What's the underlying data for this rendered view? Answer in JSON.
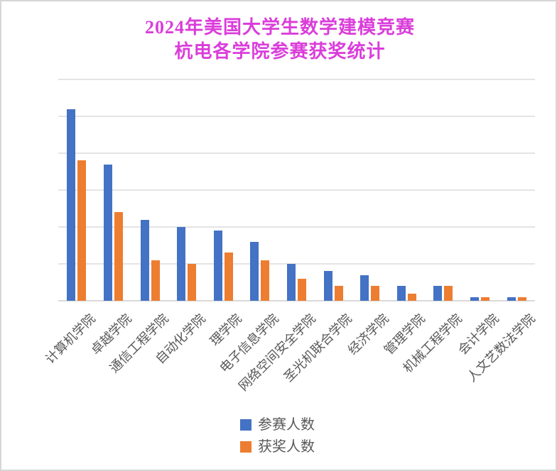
{
  "title": {
    "line1": "2024年美国大学生数学建模竞赛",
    "line2": "杭电各学院参赛获奖统计",
    "color": "#DA3DDA"
  },
  "legend": {
    "position": "bottom",
    "items": [
      {
        "label": "参赛人数",
        "color": "#4472C4",
        "swatch_icon": "square-icon"
      },
      {
        "label": "获奖人数",
        "color": "#ED7D31",
        "swatch_icon": "square-icon"
      }
    ]
  },
  "chart_data": {
    "type": "bar",
    "title": "2024年美国大学生数学建模竞赛 杭电各学院参赛获奖统计",
    "xlabel": "",
    "ylabel": "",
    "categories": [
      "计算机学院",
      "卓越学院",
      "通信工程学院",
      "自动化学院",
      "理学院",
      "电子信息学院",
      "网络空间安全学院",
      "圣光机联合学院",
      "经济学院",
      "管理学院",
      "机械工程学院",
      "会计学院",
      "人文艺数法学院"
    ],
    "series": [
      {
        "name": "参赛人数",
        "color": "#4472C4",
        "values": [
          104,
          74,
          44,
          40,
          38,
          32,
          20,
          16,
          14,
          8,
          8,
          2,
          2
        ]
      },
      {
        "name": "获奖人数",
        "color": "#ED7D31",
        "values": [
          76,
          48,
          22,
          20,
          26,
          22,
          12,
          8,
          8,
          4,
          8,
          2,
          2
        ]
      }
    ],
    "ylim": [
      0,
      120
    ],
    "y_gridline_step": 20,
    "y_tick_labels_visible": false,
    "grid": true,
    "gridline_color": "#E4E4E4",
    "x_label_rotation_deg": 45,
    "legend_position": "bottom"
  }
}
